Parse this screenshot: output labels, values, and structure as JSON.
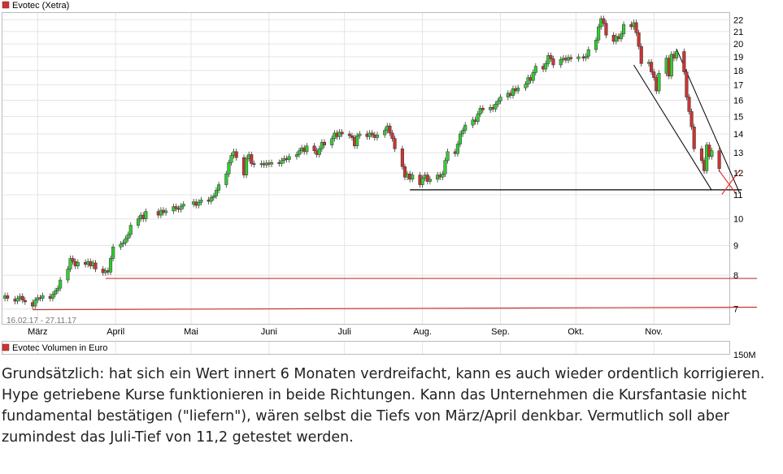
{
  "chart_data": {
    "type": "candlestick",
    "title": "Evotec (Xetra)",
    "date_range": "16.02.17 - 27.11.17",
    "month_labels": [
      "März",
      "April",
      "Mai",
      "Juni",
      "Juli",
      "Aug.",
      "Sep.",
      "Okt.",
      "Nov."
    ],
    "y_ticks": [
      7,
      8,
      9,
      10,
      11,
      12,
      13,
      14,
      15,
      16,
      17,
      18,
      19,
      20,
      21,
      22
    ],
    "ylim": [
      6.6,
      22.6
    ],
    "y_scale": "log",
    "colors": {
      "up": "#33cc33",
      "down": "#cc3333",
      "support": "#cc3333",
      "grid": "#e4e4e4"
    },
    "candles": [
      {
        "d": "2017-02-16",
        "o": 7.3,
        "c": 7.38
      },
      {
        "d": "2017-02-17",
        "o": 7.38,
        "c": 7.3
      },
      {
        "d": "2017-02-20",
        "o": 7.28,
        "c": 7.22
      },
      {
        "d": "2017-02-21",
        "o": 7.22,
        "c": 7.3
      },
      {
        "d": "2017-02-22",
        "o": 7.3,
        "c": 7.36
      },
      {
        "d": "2017-02-23",
        "o": 7.36,
        "c": 7.25
      },
      {
        "d": "2017-02-24",
        "o": 7.24,
        "c": 7.2
      },
      {
        "d": "2017-02-27",
        "o": 7.18,
        "c": 7.08
      },
      {
        "d": "2017-02-28",
        "o": 7.08,
        "c": 7.25
      },
      {
        "d": "2017-03-01",
        "o": 7.25,
        "c": 7.32
      },
      {
        "d": "2017-03-02",
        "o": 7.32,
        "c": 7.3
      },
      {
        "d": "2017-03-03",
        "o": 7.3,
        "c": 7.38
      },
      {
        "d": "2017-03-06",
        "o": 7.36,
        "c": 7.3
      },
      {
        "d": "2017-03-07",
        "o": 7.3,
        "c": 7.42
      },
      {
        "d": "2017-03-08",
        "o": 7.42,
        "c": 7.52
      },
      {
        "d": "2017-03-09",
        "o": 7.52,
        "c": 7.6
      },
      {
        "d": "2017-03-10",
        "o": 7.6,
        "c": 7.85
      },
      {
        "d": "2017-03-13",
        "o": 7.85,
        "c": 8.2
      },
      {
        "d": "2017-03-14",
        "o": 8.2,
        "c": 8.55
      },
      {
        "d": "2017-03-15",
        "o": 8.55,
        "c": 8.45
      },
      {
        "d": "2017-03-16",
        "o": 8.45,
        "c": 8.3
      },
      {
        "d": "2017-03-17",
        "o": 8.3,
        "c": 8.42
      },
      {
        "d": "2017-03-20",
        "o": 8.42,
        "c": 8.35
      },
      {
        "d": "2017-03-21",
        "o": 8.35,
        "c": 8.45
      },
      {
        "d": "2017-03-22",
        "o": 8.45,
        "c": 8.3
      },
      {
        "d": "2017-03-23",
        "o": 8.3,
        "c": 8.4
      },
      {
        "d": "2017-03-24",
        "o": 8.4,
        "c": 8.2
      },
      {
        "d": "2017-03-27",
        "o": 8.2,
        "c": 8.08
      },
      {
        "d": "2017-03-28",
        "o": 8.08,
        "c": 8.15
      },
      {
        "d": "2017-03-29",
        "o": 8.15,
        "c": 8.1
      },
      {
        "d": "2017-03-30",
        "o": 8.1,
        "c": 8.55
      },
      {
        "d": "2017-03-31",
        "o": 8.55,
        "c": 8.95
      },
      {
        "d": "2017-04-03",
        "o": 8.95,
        "c": 9.05
      },
      {
        "d": "2017-04-04",
        "o": 9.05,
        "c": 9.1
      },
      {
        "d": "2017-04-05",
        "o": 9.1,
        "c": 9.25
      },
      {
        "d": "2017-04-06",
        "o": 9.25,
        "c": 9.4
      },
      {
        "d": "2017-04-07",
        "o": 9.4,
        "c": 9.75
      },
      {
        "d": "2017-04-10",
        "o": 9.75,
        "c": 10.0
      },
      {
        "d": "2017-04-11",
        "o": 10.0,
        "c": 10.15
      },
      {
        "d": "2017-04-12",
        "o": 10.15,
        "c": 10.0
      },
      {
        "d": "2017-04-13",
        "o": 10.0,
        "c": 10.3
      },
      {
        "d": "2017-04-18",
        "o": 10.3,
        "c": 10.15
      },
      {
        "d": "2017-04-19",
        "o": 10.15,
        "c": 10.35
      },
      {
        "d": "2017-04-20",
        "o": 10.35,
        "c": 10.25
      },
      {
        "d": "2017-04-21",
        "o": 10.25,
        "c": 10.32
      },
      {
        "d": "2017-04-24",
        "o": 10.32,
        "c": 10.5
      },
      {
        "d": "2017-04-25",
        "o": 10.5,
        "c": 10.42
      },
      {
        "d": "2017-04-26",
        "o": 10.42,
        "c": 10.38
      },
      {
        "d": "2017-04-27",
        "o": 10.38,
        "c": 10.52
      },
      {
        "d": "2017-04-28",
        "o": 10.52,
        "c": 10.6
      },
      {
        "d": "2017-05-02",
        "o": 10.6,
        "c": 10.7
      },
      {
        "d": "2017-05-03",
        "o": 10.7,
        "c": 10.55
      },
      {
        "d": "2017-05-04",
        "o": 10.55,
        "c": 10.68
      },
      {
        "d": "2017-05-05",
        "o": 10.68,
        "c": 10.78
      },
      {
        "d": "2017-05-08",
        "o": 10.78,
        "c": 10.72
      },
      {
        "d": "2017-05-09",
        "o": 10.72,
        "c": 10.88
      },
      {
        "d": "2017-05-10",
        "o": 10.88,
        "c": 10.95
      },
      {
        "d": "2017-05-11",
        "o": 10.95,
        "c": 11.2
      },
      {
        "d": "2017-05-12",
        "o": 11.2,
        "c": 11.45
      },
      {
        "d": "2017-05-15",
        "o": 11.45,
        "c": 11.95
      },
      {
        "d": "2017-05-16",
        "o": 11.95,
        "c": 12.5
      },
      {
        "d": "2017-05-17",
        "o": 12.5,
        "c": 12.85
      },
      {
        "d": "2017-05-18",
        "o": 12.85,
        "c": 13.05
      },
      {
        "d": "2017-05-19",
        "o": 13.05,
        "c": 12.75
      },
      {
        "d": "2017-05-22",
        "o": 12.75,
        "c": 11.9
      },
      {
        "d": "2017-05-23",
        "o": 11.9,
        "c": 12.7
      },
      {
        "d": "2017-05-24",
        "o": 12.7,
        "c": 12.9
      },
      {
        "d": "2017-05-25",
        "o": 12.9,
        "c": 12.45
      },
      {
        "d": "2017-05-26",
        "o": 12.45,
        "c": 12.4
      },
      {
        "d": "2017-05-29",
        "o": 12.4,
        "c": 12.45
      },
      {
        "d": "2017-05-30",
        "o": 12.45,
        "c": 12.38
      },
      {
        "d": "2017-05-31",
        "o": 12.38,
        "c": 12.48
      },
      {
        "d": "2017-06-01",
        "o": 12.48,
        "c": 12.42
      },
      {
        "d": "2017-06-02",
        "o": 12.42,
        "c": 12.5
      },
      {
        "d": "2017-06-05",
        "o": 12.5,
        "c": 12.45
      },
      {
        "d": "2017-06-06",
        "o": 12.45,
        "c": 12.6
      },
      {
        "d": "2017-06-07",
        "o": 12.6,
        "c": 12.7
      },
      {
        "d": "2017-06-08",
        "o": 12.7,
        "c": 12.65
      },
      {
        "d": "2017-06-09",
        "o": 12.65,
        "c": 12.8
      },
      {
        "d": "2017-06-12",
        "o": 12.8,
        "c": 12.9
      },
      {
        "d": "2017-06-13",
        "o": 12.9,
        "c": 13.1
      },
      {
        "d": "2017-06-14",
        "o": 13.1,
        "c": 13.25
      },
      {
        "d": "2017-06-15",
        "o": 13.25,
        "c": 13.05
      },
      {
        "d": "2017-06-16",
        "o": 13.05,
        "c": 13.35
      },
      {
        "d": "2017-06-19",
        "o": 13.35,
        "c": 13.1
      },
      {
        "d": "2017-06-20",
        "o": 13.1,
        "c": 12.9
      },
      {
        "d": "2017-06-21",
        "o": 12.9,
        "c": 13.2
      },
      {
        "d": "2017-06-22",
        "o": 13.2,
        "c": 13.55
      },
      {
        "d": "2017-06-23",
        "o": 13.55,
        "c": 13.4
      },
      {
        "d": "2017-06-26",
        "o": 13.4,
        "c": 13.75
      },
      {
        "d": "2017-06-27",
        "o": 13.75,
        "c": 14.05
      },
      {
        "d": "2017-06-28",
        "o": 14.05,
        "c": 13.85
      },
      {
        "d": "2017-06-29",
        "o": 13.85,
        "c": 14.1
      },
      {
        "d": "2017-06-30",
        "o": 14.1,
        "c": 14.0
      },
      {
        "d": "2017-07-03",
        "o": 14.0,
        "c": 13.9
      },
      {
        "d": "2017-07-04",
        "o": 13.9,
        "c": 13.8
      },
      {
        "d": "2017-07-05",
        "o": 13.8,
        "c": 13.35
      },
      {
        "d": "2017-07-06",
        "o": 13.35,
        "c": 13.9
      },
      {
        "d": "2017-07-07",
        "o": 13.9,
        "c": 14.0
      },
      {
        "d": "2017-07-10",
        "o": 14.0,
        "c": 13.85
      },
      {
        "d": "2017-07-11",
        "o": 13.85,
        "c": 14.05
      },
      {
        "d": "2017-07-12",
        "o": 14.05,
        "c": 13.95
      },
      {
        "d": "2017-07-13",
        "o": 13.95,
        "c": 13.8
      },
      {
        "d": "2017-07-14",
        "o": 13.8,
        "c": 13.95
      },
      {
        "d": "2017-07-17",
        "o": 13.95,
        "c": 14.2
      },
      {
        "d": "2017-07-18",
        "o": 14.2,
        "c": 14.45
      },
      {
        "d": "2017-07-19",
        "o": 14.45,
        "c": 14.05
      },
      {
        "d": "2017-07-20",
        "o": 14.05,
        "c": 13.75
      },
      {
        "d": "2017-07-21",
        "o": 13.75,
        "c": 13.2
      },
      {
        "d": "2017-07-24",
        "o": 13.2,
        "c": 12.3
      },
      {
        "d": "2017-07-25",
        "o": 12.3,
        "c": 11.8
      },
      {
        "d": "2017-07-26",
        "o": 11.8,
        "c": 11.95
      },
      {
        "d": "2017-07-27",
        "o": 11.95,
        "c": 11.7
      },
      {
        "d": "2017-07-28",
        "o": 11.7,
        "c": 11.9
      },
      {
        "d": "2017-07-31",
        "o": 11.9,
        "c": 11.45
      },
      {
        "d": "2017-08-01",
        "o": 11.45,
        "c": 11.75
      },
      {
        "d": "2017-08-02",
        "o": 11.75,
        "c": 11.9
      },
      {
        "d": "2017-08-03",
        "o": 11.9,
        "c": 11.6
      },
      {
        "d": "2017-08-04",
        "o": 11.6,
        "c": 11.7
      },
      {
        "d": "2017-08-07",
        "o": 11.7,
        "c": 11.9
      },
      {
        "d": "2017-08-08",
        "o": 11.9,
        "c": 11.8
      },
      {
        "d": "2017-08-09",
        "o": 11.8,
        "c": 11.95
      },
      {
        "d": "2017-08-10",
        "o": 11.95,
        "c": 12.6
      },
      {
        "d": "2017-08-11",
        "o": 12.6,
        "c": 13.05
      },
      {
        "d": "2017-08-14",
        "o": 13.05,
        "c": 12.95
      },
      {
        "d": "2017-08-15",
        "o": 12.95,
        "c": 13.45
      },
      {
        "d": "2017-08-16",
        "o": 13.45,
        "c": 14.0
      },
      {
        "d": "2017-08-17",
        "o": 14.0,
        "c": 14.2
      },
      {
        "d": "2017-08-18",
        "o": 14.2,
        "c": 14.5
      },
      {
        "d": "2017-08-21",
        "o": 14.5,
        "c": 14.8
      },
      {
        "d": "2017-08-22",
        "o": 14.8,
        "c": 14.7
      },
      {
        "d": "2017-08-23",
        "o": 14.7,
        "c": 15.15
      },
      {
        "d": "2017-08-24",
        "o": 15.15,
        "c": 15.5
      },
      {
        "d": "2017-08-25",
        "o": 15.5,
        "c": 15.4
      },
      {
        "d": "2017-08-28",
        "o": 15.4,
        "c": 15.55
      },
      {
        "d": "2017-08-29",
        "o": 15.55,
        "c": 15.45
      },
      {
        "d": "2017-08-30",
        "o": 15.45,
        "c": 15.75
      },
      {
        "d": "2017-08-31",
        "o": 15.75,
        "c": 15.95
      },
      {
        "d": "2017-09-01",
        "o": 15.95,
        "c": 16.2
      },
      {
        "d": "2017-09-04",
        "o": 16.2,
        "c": 16.45
      },
      {
        "d": "2017-09-05",
        "o": 16.45,
        "c": 16.3
      },
      {
        "d": "2017-09-06",
        "o": 16.3,
        "c": 16.75
      },
      {
        "d": "2017-09-07",
        "o": 16.75,
        "c": 16.6
      },
      {
        "d": "2017-09-08",
        "o": 16.6,
        "c": 16.8
      },
      {
        "d": "2017-09-11",
        "o": 16.8,
        "c": 17.05
      },
      {
        "d": "2017-09-12",
        "o": 17.05,
        "c": 17.5
      },
      {
        "d": "2017-09-13",
        "o": 17.5,
        "c": 17.3
      },
      {
        "d": "2017-09-14",
        "o": 17.3,
        "c": 17.85
      },
      {
        "d": "2017-09-15",
        "o": 17.85,
        "c": 18.3
      },
      {
        "d": "2017-09-18",
        "o": 18.3,
        "c": 18.1
      },
      {
        "d": "2017-09-19",
        "o": 18.1,
        "c": 18.5
      },
      {
        "d": "2017-09-20",
        "o": 18.5,
        "c": 19.1
      },
      {
        "d": "2017-09-21",
        "o": 19.1,
        "c": 18.85
      },
      {
        "d": "2017-09-22",
        "o": 18.85,
        "c": 18.4
      },
      {
        "d": "2017-09-25",
        "o": 18.4,
        "c": 18.8
      },
      {
        "d": "2017-09-26",
        "o": 18.8,
        "c": 18.9
      },
      {
        "d": "2017-09-27",
        "o": 18.9,
        "c": 18.75
      },
      {
        "d": "2017-09-28",
        "o": 18.75,
        "c": 18.95
      },
      {
        "d": "2017-09-29",
        "o": 18.95,
        "c": 18.85
      },
      {
        "d": "2017-10-02",
        "o": 18.85,
        "c": 19.0
      },
      {
        "d": "2017-10-04",
        "o": 19.0,
        "c": 18.9
      },
      {
        "d": "2017-10-05",
        "o": 18.9,
        "c": 19.05
      },
      {
        "d": "2017-10-06",
        "o": 19.05,
        "c": 19.55
      },
      {
        "d": "2017-10-09",
        "o": 19.55,
        "c": 20.3
      },
      {
        "d": "2017-10-10",
        "o": 20.3,
        "c": 21.4
      },
      {
        "d": "2017-10-11",
        "o": 21.4,
        "c": 22.1
      },
      {
        "d": "2017-10-12",
        "o": 22.1,
        "c": 21.7
      },
      {
        "d": "2017-10-13",
        "o": 21.7,
        "c": 20.7
      },
      {
        "d": "2017-10-16",
        "o": 20.7,
        "c": 20.2
      },
      {
        "d": "2017-10-17",
        "o": 20.2,
        "c": 20.6
      },
      {
        "d": "2017-10-18",
        "o": 20.6,
        "c": 20.4
      },
      {
        "d": "2017-10-19",
        "o": 20.4,
        "c": 20.8
      },
      {
        "d": "2017-10-20",
        "o": 20.8,
        "c": 21.6
      },
      {
        "d": "2017-10-23",
        "o": 21.6,
        "c": 21.4
      },
      {
        "d": "2017-10-24",
        "o": 21.4,
        "c": 21.75
      },
      {
        "d": "2017-10-25",
        "o": 21.75,
        "c": 20.9
      },
      {
        "d": "2017-10-26",
        "o": 20.9,
        "c": 19.8
      },
      {
        "d": "2017-10-27",
        "o": 19.8,
        "c": 18.5
      },
      {
        "d": "2017-10-30",
        "o": 18.5,
        "c": 18.6
      },
      {
        "d": "2017-10-31",
        "o": 18.6,
        "c": 17.9
      },
      {
        "d": "2017-11-01",
        "o": 17.9,
        "c": 17.5
      },
      {
        "d": "2017-11-02",
        "o": 17.5,
        "c": 16.6
      },
      {
        "d": "2017-11-03",
        "o": 16.6,
        "c": 17.8
      },
      {
        "d": "2017-11-06",
        "o": 17.8,
        "c": 18.9
      },
      {
        "d": "2017-11-07",
        "o": 18.9,
        "c": 17.6
      },
      {
        "d": "2017-11-08",
        "o": 17.6,
        "c": 19.2
      },
      {
        "d": "2017-11-09",
        "o": 19.2,
        "c": 18.9
      },
      {
        "d": "2017-11-10",
        "o": 18.9,
        "c": 19.4
      },
      {
        "d": "2017-11-13",
        "o": 19.4,
        "c": 17.9
      },
      {
        "d": "2017-11-14",
        "o": 17.9,
        "c": 16.2
      },
      {
        "d": "2017-11-15",
        "o": 16.2,
        "c": 15.3
      },
      {
        "d": "2017-11-16",
        "o": 15.3,
        "c": 14.4
      },
      {
        "d": "2017-11-17",
        "o": 14.4,
        "c": 13.2
      },
      {
        "d": "2017-11-20",
        "o": 13.2,
        "c": 12.6
      },
      {
        "d": "2017-11-21",
        "o": 12.6,
        "c": 12.1
      },
      {
        "d": "2017-11-22",
        "o": 12.1,
        "c": 13.4
      },
      {
        "d": "2017-11-23",
        "o": 13.4,
        "c": 12.8
      },
      {
        "d": "2017-11-24",
        "o": 12.8,
        "c": 13.1
      },
      {
        "d": "2017-11-27",
        "o": 13.1,
        "c": 12.2
      }
    ],
    "support_lines": [
      {
        "from": {
          "d": "2017-03-28",
          "v": 7.9
        },
        "to": {
          "d": "2017-12-12",
          "v": 7.9
        },
        "color": "#cc3333"
      },
      {
        "from": {
          "d": "2017-02-27",
          "v": 6.98
        },
        "to": {
          "d": "2017-12-12",
          "v": 7.05
        },
        "color": "#cc3333"
      },
      {
        "from": {
          "d": "2017-07-27",
          "v": 11.22
        },
        "to": {
          "d": "2017-12-06",
          "v": 11.22
        },
        "color": "#000000"
      }
    ],
    "channel_lines": [
      {
        "from": {
          "d": "2017-10-24",
          "v": 18.4
        },
        "to": {
          "d": "2017-11-24",
          "v": 11.2
        },
        "color": "#000000"
      },
      {
        "from": {
          "d": "2017-11-10",
          "v": 19.6
        },
        "to": {
          "d": "2017-12-05",
          "v": 11.1
        },
        "color": "#000000"
      }
    ],
    "target_marker": {
      "d": "2017-11-30",
      "v": 11.6,
      "color": "#ee3333"
    },
    "volume_panel": {
      "legend": "Evotec Volumen in Euro",
      "y_tick": "150M"
    }
  },
  "caption": "Grundsätzlich:  hat sich ein Wert innert 6 Monaten verdreifacht, kann es auch wieder ordentlich korrigieren. Hype getriebene Kurse funktionieren in beide Richtungen. Kann das Unternehmen die Kursfantasie nicht fundamental bestätigen (\"liefern\"), wären selbst die Tiefs von März/April denkbar. Vermutlich soll aber zumindest das Juli-Tief von 11,2 getestet werden."
}
